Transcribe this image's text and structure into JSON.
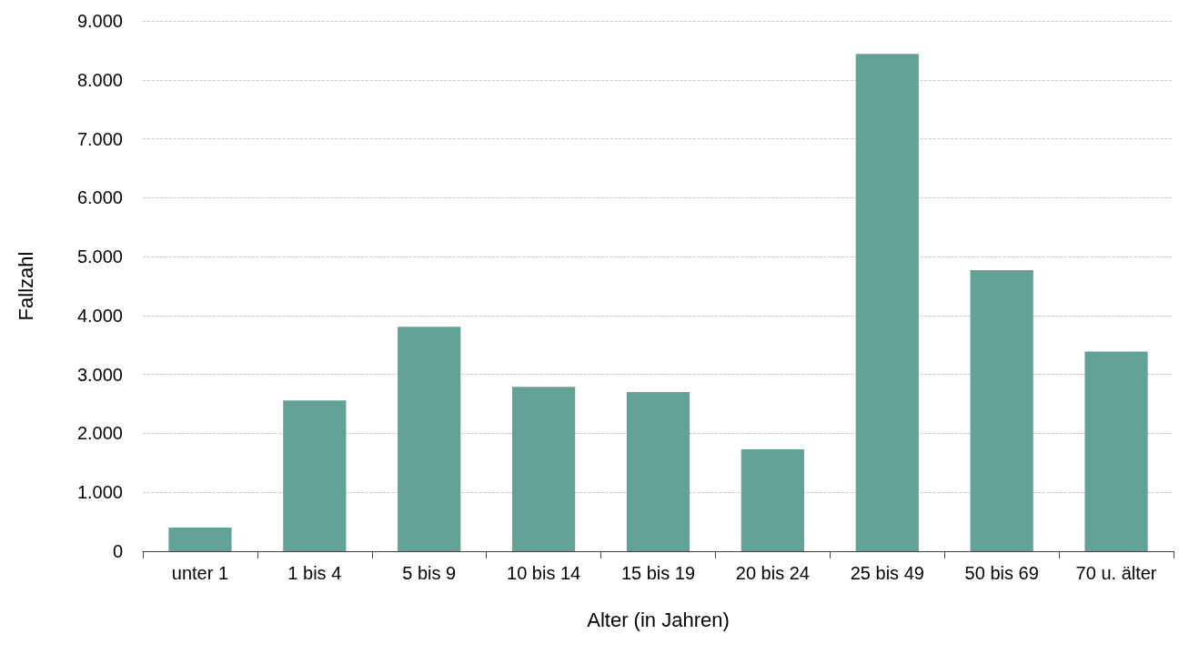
{
  "chart_data": {
    "type": "bar",
    "xlabel": "Alter (in Jahren)",
    "ylabel": "Fallzahl",
    "categories": [
      "unter 1",
      "1 bis 4",
      "5 bis 9",
      "10 bis 14",
      "15 bis 19",
      "20 bis 24",
      "25 bis 49",
      "50 bis 69",
      "70 u. älter"
    ],
    "values": [
      400,
      2560,
      3810,
      2790,
      2700,
      1730,
      8440,
      4770,
      3390
    ],
    "color": "#63a397",
    "ylim": [
      0,
      9000
    ],
    "yticks": [
      0,
      {
        "value": 1000,
        "label": "1.000"
      },
      {
        "value": 2000,
        "label": "2.000"
      },
      {
        "value": 3000,
        "label": "3.000"
      },
      {
        "value": 4000,
        "label": "4.000"
      },
      {
        "value": 5000,
        "label": "5.000"
      },
      {
        "value": 6000,
        "label": "6.000"
      },
      {
        "value": 7000,
        "label": "7.000"
      },
      {
        "value": 8000,
        "label": "8.000"
      },
      {
        "value": 9000,
        "label": "9.000"
      }
    ],
    "grid": "y"
  }
}
